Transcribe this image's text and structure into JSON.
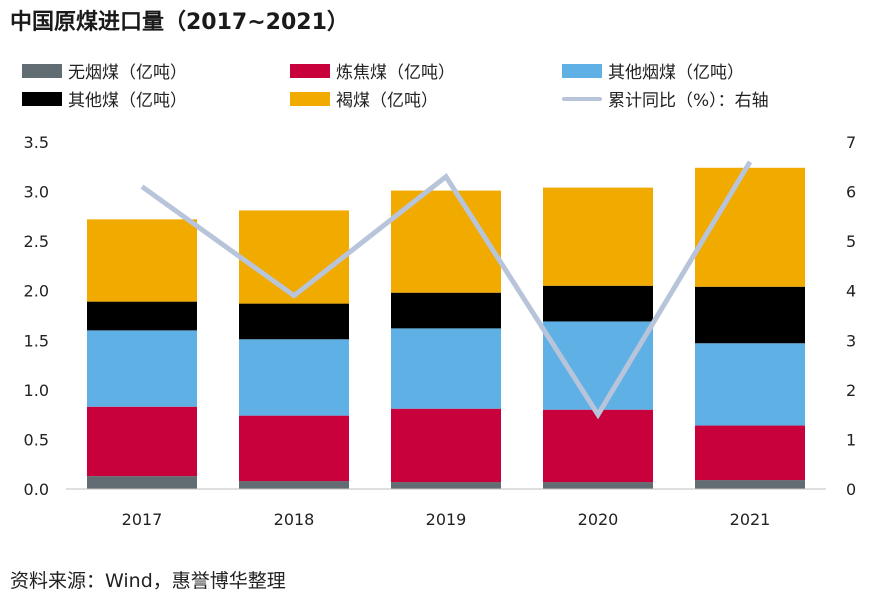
{
  "title": "中国原煤进口量（2017~2021）",
  "source": "资料来源：Wind，惠誉博华整理",
  "chart_data": {
    "type": "bar",
    "stacked": true,
    "categories": [
      "2017",
      "2018",
      "2019",
      "2020",
      "2021"
    ],
    "series": [
      {
        "name": "无烟煤（亿吨）",
        "color": "#616c73",
        "values": [
          0.13,
          0.08,
          0.07,
          0.07,
          0.09
        ]
      },
      {
        "name": "炼焦煤（亿吨）",
        "color": "#c8003c",
        "values": [
          0.7,
          0.66,
          0.74,
          0.73,
          0.55
        ]
      },
      {
        "name": "其他烟煤（亿吨）",
        "color": "#5fb0e5",
        "values": [
          0.77,
          0.77,
          0.81,
          0.89,
          0.83
        ]
      },
      {
        "name": "其他煤（亿吨）",
        "color": "#000000",
        "values": [
          0.29,
          0.36,
          0.36,
          0.36,
          0.57
        ]
      },
      {
        "name": "褐煤（亿吨）",
        "color": "#f0aa00",
        "values": [
          0.83,
          0.94,
          1.03,
          0.99,
          1.2
        ]
      }
    ],
    "line": {
      "name": "累计同比（%）：右轴",
      "color": "#b8c4d9",
      "values": [
        6.1,
        3.9,
        6.3,
        1.5,
        6.6
      ]
    },
    "ylim": [
      0,
      3.5
    ],
    "yticks": [
      "0.0",
      "0.5",
      "1.0",
      "1.5",
      "2.0",
      "2.5",
      "3.0",
      "3.5"
    ],
    "y2lim": [
      0,
      7
    ],
    "y2ticks": [
      "0",
      "1",
      "2",
      "3",
      "4",
      "5",
      "6",
      "7"
    ],
    "grid": false,
    "legend_position": "top"
  }
}
